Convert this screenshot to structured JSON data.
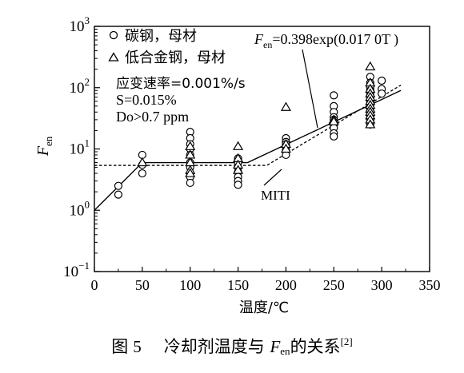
{
  "chart_data": {
    "type": "scatter",
    "y_scale": "log",
    "xlim": [
      0,
      350
    ],
    "ylim_log10": [
      -1,
      3
    ],
    "x_ticks": [
      "0",
      "50",
      "100",
      "150",
      "200",
      "250",
      "300",
      "350"
    ],
    "y_tick_values": [
      -1,
      0,
      1,
      2,
      3
    ],
    "xlabel": "温度/℃",
    "ylabel_main": "F",
    "ylabel_sub": "en",
    "legend": [
      {
        "marker": "circle",
        "label": "碳钢，母材"
      },
      {
        "marker": "triangle",
        "label": "低合金钢，母材"
      }
    ],
    "conditions": [
      "应变速率=0.001%/s",
      "S=0.015%",
      "Do>0.7 ppm"
    ],
    "equation_main": "F",
    "equation_sub": "en",
    "equation_rest": "=0.398exp(0.017 0T )",
    "miti_label": "MITI",
    "series": [
      {
        "name": "碳钢，母材",
        "marker": "circle",
        "x": [
          25,
          25,
          50,
          50,
          50,
          100,
          100,
          100,
          100,
          100,
          100,
          100,
          100,
          100,
          100,
          150,
          150,
          150,
          150,
          150,
          150,
          150,
          200,
          200,
          200,
          200,
          200,
          200,
          250,
          250,
          250,
          250,
          250,
          250,
          250,
          250,
          250,
          288,
          288,
          288,
          288,
          288,
          288,
          288,
          288,
          288,
          288,
          288,
          288,
          288,
          288,
          288,
          300,
          300,
          300
        ],
        "y": [
          2.5,
          1.8,
          8,
          5.5,
          4,
          19,
          15,
          12,
          10,
          8,
          6,
          5,
          4,
          3.5,
          2.8,
          7,
          6,
          5,
          4.2,
          3.5,
          3,
          2.6,
          15,
          13,
          12,
          11,
          9.5,
          8,
          75,
          50,
          40,
          33,
          30,
          25,
          22,
          18,
          16,
          150,
          120,
          100,
          90,
          80,
          70,
          62,
          55,
          48,
          42,
          38,
          34,
          30,
          27,
          25,
          130,
          95,
          80
        ]
      },
      {
        "name": "低合金钢，母材",
        "marker": "triangle",
        "x": [
          50,
          100,
          100,
          100,
          100,
          100,
          150,
          150,
          150,
          150,
          200,
          200,
          200,
          250,
          250,
          288,
          288,
          288,
          288,
          288,
          288,
          288,
          288,
          288,
          288,
          288,
          288
        ],
        "y": [
          6,
          11,
          8,
          6,
          4.5,
          4,
          11,
          7,
          5.5,
          4.5,
          48,
          12,
          10,
          30,
          28,
          220,
          120,
          95,
          80,
          70,
          60,
          52,
          45,
          40,
          35,
          30,
          25
        ]
      }
    ],
    "fit_line": {
      "name": "F_en=0.398exp(0.017 0T)",
      "x": [
        0,
        50,
        160,
        320
      ],
      "y": [
        1,
        6,
        6,
        90
      ]
    },
    "miti_line": {
      "name": "MITI",
      "x": [
        0,
        180,
        320
      ],
      "y": [
        5.4,
        5.4,
        110
      ]
    }
  },
  "caption": {
    "figure": "图",
    "number": "5",
    "title_a": "冷却剂温度与",
    "title_f": "F",
    "title_sub": "en",
    "title_b": "的关系",
    "ref": "[2]"
  }
}
